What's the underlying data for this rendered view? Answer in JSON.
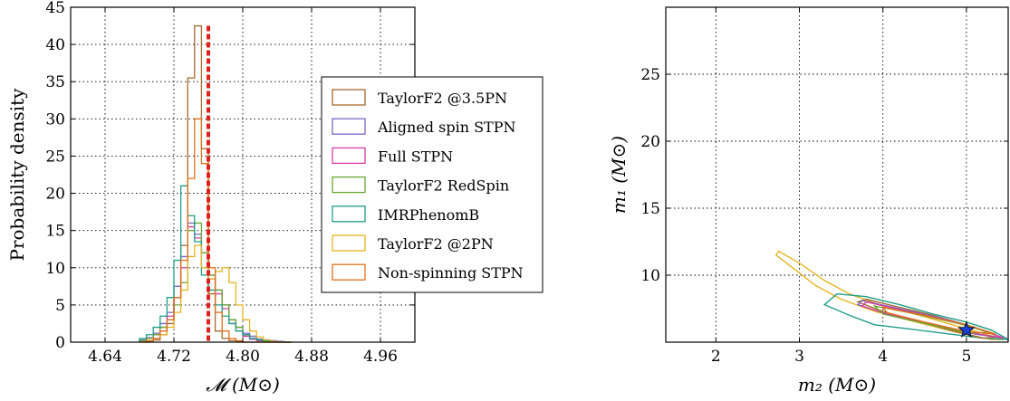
{
  "chart_data": [
    {
      "type": "histogram",
      "xlabel": "𝓜 (M⊙)",
      "ylabel": "Probability density",
      "xlim": [
        4.6,
        5.0
      ],
      "ylim": [
        0,
        45
      ],
      "xticks": [
        "4.64",
        "4.72",
        "4.80",
        "4.88",
        "4.96"
      ],
      "yticks": [
        "0",
        "5",
        "10",
        "15",
        "20",
        "25",
        "30",
        "35",
        "40",
        "45"
      ],
      "grid": true,
      "legend_position": "right",
      "bin_edges": [
        4.68,
        4.688,
        4.696,
        4.704,
        4.712,
        4.72,
        4.728,
        4.736,
        4.744,
        4.752,
        4.76,
        4.768,
        4.776,
        4.784,
        4.792,
        4.8,
        4.808,
        4.816,
        4.824,
        4.832,
        4.84,
        4.848,
        4.856
      ],
      "series": [
        {
          "name": "TaylorF2 @3.5PN",
          "color": "#a66a2e",
          "values": [
            0,
            0.1,
            0.3,
            1,
            2.5,
            6,
            13,
            35.5,
            42.5,
            26,
            6.5,
            1.5,
            0.5,
            0.2,
            0.1,
            0,
            0,
            0,
            0,
            0,
            0,
            0
          ]
        },
        {
          "name": "Aligned spin STPN",
          "color": "#7b68c8",
          "values": [
            0.3,
            0.6,
            1.2,
            2.5,
            4,
            7.5,
            11.5,
            16,
            14.5,
            12,
            9,
            7,
            5,
            3,
            2,
            1.2,
            0.8,
            0.4,
            0.3,
            0.2,
            0.1,
            0
          ]
        },
        {
          "name": "Full STPN",
          "color": "#d63fa0",
          "values": [
            0.2,
            0.5,
            1,
            2,
            3.5,
            6,
            10,
            15.5,
            14,
            12,
            8.5,
            6.5,
            4.5,
            2.5,
            1.5,
            0.8,
            0.4,
            0.2,
            0.1,
            0,
            0,
            0
          ]
        },
        {
          "name": "TaylorF2 RedSpin",
          "color": "#6aa832",
          "values": [
            0.2,
            0.5,
            1,
            2,
            3,
            5,
            8,
            15,
            16,
            12,
            9,
            7,
            5,
            3,
            2,
            1,
            0.5,
            0.3,
            0.1,
            0,
            0,
            0
          ]
        },
        {
          "name": "IMRPhenomB",
          "color": "#1f9e89",
          "values": [
            0.5,
            1,
            2,
            3.5,
            6,
            11,
            21,
            17,
            13.5,
            9,
            7,
            5,
            3.5,
            2.5,
            1.5,
            1,
            0.5,
            0.3,
            0.2,
            0.1,
            0,
            0
          ]
        },
        {
          "name": "TaylorF2 @2PN",
          "color": "#e6b422",
          "values": [
            0,
            0.2,
            0.5,
            1,
            2,
            4,
            7,
            11.5,
            13,
            10,
            8.5,
            9.5,
            10,
            8,
            5,
            3,
            1.5,
            0.7,
            0.3,
            0.1,
            0,
            0
          ]
        },
        {
          "name": "Non-spinning STPN",
          "color": "#e0701c",
          "values": [
            0,
            0.2,
            0.5,
            1.5,
            3,
            6,
            11,
            22,
            30,
            24,
            10,
            4,
            1.5,
            0.5,
            0.2,
            0,
            0,
            0,
            0,
            0,
            0,
            0
          ]
        }
      ],
      "injected_value": {
        "x": 4.76,
        "color": "#e0201c"
      }
    },
    {
      "type": "contour",
      "xlabel": "m₂ (M⊙)",
      "ylabel": "m₁ (M⊙)",
      "xlim": [
        1.4,
        5.5
      ],
      "ylim": [
        5,
        30
      ],
      "xticks": [
        "2",
        "3",
        "4",
        "5"
      ],
      "yticks": [
        "10",
        "15",
        "20",
        "25"
      ],
      "grid": true,
      "injected_point": {
        "x": 5.0,
        "y": 5.9,
        "marker": "star",
        "color": "#1a3fd6"
      },
      "contours": [
        {
          "name": "TaylorF2 @2PN",
          "color": "#e6b422",
          "points": [
            [
              2.75,
              11.8
            ],
            [
              3.0,
              10.9
            ],
            [
              3.3,
              9.6
            ],
            [
              3.6,
              8.6
            ],
            [
              4.0,
              7.7
            ],
            [
              4.5,
              6.9
            ],
            [
              5.0,
              6.0
            ],
            [
              5.45,
              5.2
            ],
            [
              5.3,
              5.2
            ],
            [
              4.9,
              5.7
            ],
            [
              4.4,
              6.5
            ],
            [
              3.9,
              7.3
            ],
            [
              3.5,
              8.2
            ],
            [
              3.2,
              9.2
            ],
            [
              2.95,
              10.4
            ],
            [
              2.72,
              11.5
            ]
          ]
        },
        {
          "name": "IMRPhenomB",
          "color": "#1f9e89",
          "points": [
            [
              3.45,
              8.6
            ],
            [
              3.8,
              8.4
            ],
            [
              4.2,
              7.8
            ],
            [
              4.6,
              7.1
            ],
            [
              5.0,
              6.5
            ],
            [
              5.3,
              5.9
            ],
            [
              5.5,
              5.2
            ],
            [
              5.2,
              5.3
            ],
            [
              4.8,
              5.6
            ],
            [
              4.3,
              6.0
            ],
            [
              3.9,
              6.3
            ],
            [
              3.6,
              7.0
            ],
            [
              3.3,
              7.8
            ]
          ]
        },
        {
          "name": "TaylorF2 @3.5PN",
          "color": "#a66a2e",
          "points": [
            [
              3.8,
              8.2
            ],
            [
              4.2,
              7.6
            ],
            [
              4.6,
              7.0
            ],
            [
              5.0,
              6.3
            ],
            [
              5.4,
              5.4
            ],
            [
              5.2,
              5.3
            ],
            [
              4.8,
              5.9
            ],
            [
              4.4,
              6.6
            ],
            [
              4.0,
              7.3
            ],
            [
              3.7,
              8.0
            ]
          ]
        },
        {
          "name": "Aligned spin STPN",
          "color": "#7b68c8",
          "points": [
            [
              3.75,
              8.1
            ],
            [
              4.2,
              7.5
            ],
            [
              4.7,
              6.8
            ],
            [
              5.1,
              6.1
            ],
            [
              5.45,
              5.3
            ],
            [
              5.1,
              5.6
            ],
            [
              4.6,
              6.3
            ],
            [
              4.1,
              7.0
            ],
            [
              3.7,
              7.8
            ]
          ]
        },
        {
          "name": "Full STPN",
          "color": "#d63fa0",
          "points": [
            [
              3.8,
              8.0
            ],
            [
              4.3,
              7.3
            ],
            [
              4.8,
              6.6
            ],
            [
              5.2,
              5.9
            ],
            [
              5.45,
              5.3
            ],
            [
              5.05,
              5.7
            ],
            [
              4.55,
              6.4
            ],
            [
              4.05,
              7.1
            ],
            [
              3.75,
              7.7
            ]
          ]
        },
        {
          "name": "TaylorF2 RedSpin",
          "color": "#6aa832",
          "points": [
            [
              3.9,
              7.7
            ],
            [
              4.4,
              7.1
            ],
            [
              4.9,
              6.4
            ],
            [
              5.3,
              5.7
            ],
            [
              5.0,
              5.7
            ],
            [
              4.5,
              6.4
            ],
            [
              4.0,
              7.1
            ]
          ]
        },
        {
          "name": "Non-spinning STPN",
          "color": "#e0701c",
          "points": [
            [
              4.0,
              7.6
            ],
            [
              4.5,
              7.0
            ],
            [
              5.0,
              6.3
            ],
            [
              5.35,
              5.6
            ],
            [
              5.0,
              5.8
            ],
            [
              4.5,
              6.5
            ],
            [
              4.05,
              7.2
            ]
          ]
        }
      ]
    }
  ]
}
